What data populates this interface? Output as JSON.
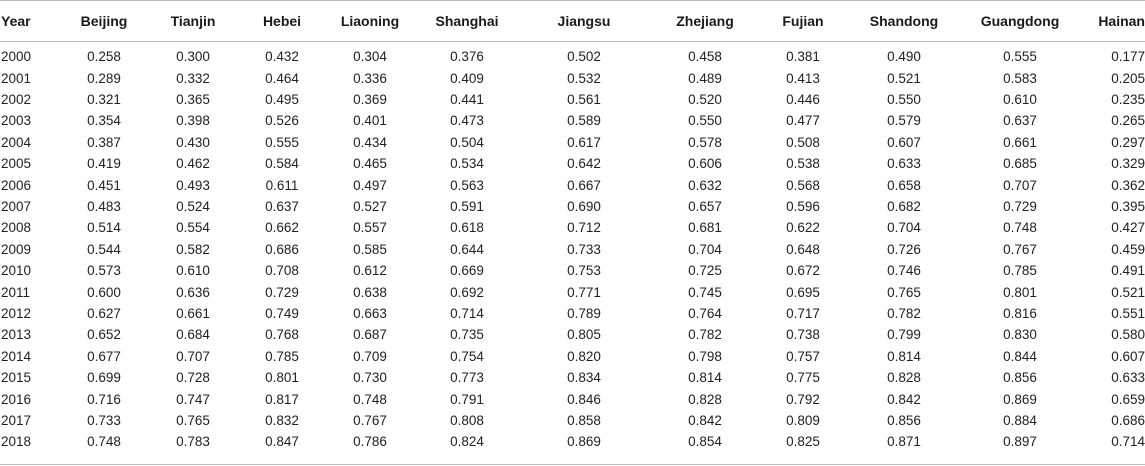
{
  "table": {
    "columns": [
      "Year",
      "Beijing",
      "Tianjin",
      "Hebei",
      "Liaoning",
      "Shanghai",
      "Jiangsu",
      "Zhejiang",
      "Fujian",
      "Shandong",
      "Guangdong",
      "Hainan"
    ],
    "rows": [
      [
        "2000",
        "0.258",
        "0.300",
        "0.432",
        "0.304",
        "0.376",
        "0.502",
        "0.458",
        "0.381",
        "0.490",
        "0.555",
        "0.177"
      ],
      [
        "2001",
        "0.289",
        "0.332",
        "0.464",
        "0.336",
        "0.409",
        "0.532",
        "0.489",
        "0.413",
        "0.521",
        "0.583",
        "0.205"
      ],
      [
        "2002",
        "0.321",
        "0.365",
        "0.495",
        "0.369",
        "0.441",
        "0.561",
        "0.520",
        "0.446",
        "0.550",
        "0.610",
        "0.235"
      ],
      [
        "2003",
        "0.354",
        "0.398",
        "0.526",
        "0.401",
        "0.473",
        "0.589",
        "0.550",
        "0.477",
        "0.579",
        "0.637",
        "0.265"
      ],
      [
        "2004",
        "0.387",
        "0.430",
        "0.555",
        "0.434",
        "0.504",
        "0.617",
        "0.578",
        "0.508",
        "0.607",
        "0.661",
        "0.297"
      ],
      [
        "2005",
        "0.419",
        "0.462",
        "0.584",
        "0.465",
        "0.534",
        "0.642",
        "0.606",
        "0.538",
        "0.633",
        "0.685",
        "0.329"
      ],
      [
        "2006",
        "0.451",
        "0.493",
        "0.611",
        "0.497",
        "0.563",
        "0.667",
        "0.632",
        "0.568",
        "0.658",
        "0.707",
        "0.362"
      ],
      [
        "2007",
        "0.483",
        "0.524",
        "0.637",
        "0.527",
        "0.591",
        "0.690",
        "0.657",
        "0.596",
        "0.682",
        "0.729",
        "0.395"
      ],
      [
        "2008",
        "0.514",
        "0.554",
        "0.662",
        "0.557",
        "0.618",
        "0.712",
        "0.681",
        "0.622",
        "0.704",
        "0.748",
        "0.427"
      ],
      [
        "2009",
        "0.544",
        "0.582",
        "0.686",
        "0.585",
        "0.644",
        "0.733",
        "0.704",
        "0.648",
        "0.726",
        "0.767",
        "0.459"
      ],
      [
        "2010",
        "0.573",
        "0.610",
        "0.708",
        "0.612",
        "0.669",
        "0.753",
        "0.725",
        "0.672",
        "0.746",
        "0.785",
        "0.491"
      ],
      [
        "2011",
        "0.600",
        "0.636",
        "0.729",
        "0.638",
        "0.692",
        "0.771",
        "0.745",
        "0.695",
        "0.765",
        "0.801",
        "0.521"
      ],
      [
        "2012",
        "0.627",
        "0.661",
        "0.749",
        "0.663",
        "0.714",
        "0.789",
        "0.764",
        "0.717",
        "0.782",
        "0.816",
        "0.551"
      ],
      [
        "2013",
        "0.652",
        "0.684",
        "0.768",
        "0.687",
        "0.735",
        "0.805",
        "0.782",
        "0.738",
        "0.799",
        "0.830",
        "0.580"
      ],
      [
        "2014",
        "0.677",
        "0.707",
        "0.785",
        "0.709",
        "0.754",
        "0.820",
        "0.798",
        "0.757",
        "0.814",
        "0.844",
        "0.607"
      ],
      [
        "2015",
        "0.699",
        "0.728",
        "0.801",
        "0.730",
        "0.773",
        "0.834",
        "0.814",
        "0.775",
        "0.828",
        "0.856",
        "0.633"
      ],
      [
        "2016",
        "0.716",
        "0.747",
        "0.817",
        "0.748",
        "0.791",
        "0.846",
        "0.828",
        "0.792",
        "0.842",
        "0.869",
        "0.659"
      ],
      [
        "2017",
        "0.733",
        "0.765",
        "0.832",
        "0.767",
        "0.808",
        "0.858",
        "0.842",
        "0.809",
        "0.856",
        "0.884",
        "0.686"
      ],
      [
        "2018",
        "0.748",
        "0.783",
        "0.847",
        "0.786",
        "0.824",
        "0.869",
        "0.854",
        "0.825",
        "0.871",
        "0.897",
        "0.714"
      ]
    ]
  }
}
